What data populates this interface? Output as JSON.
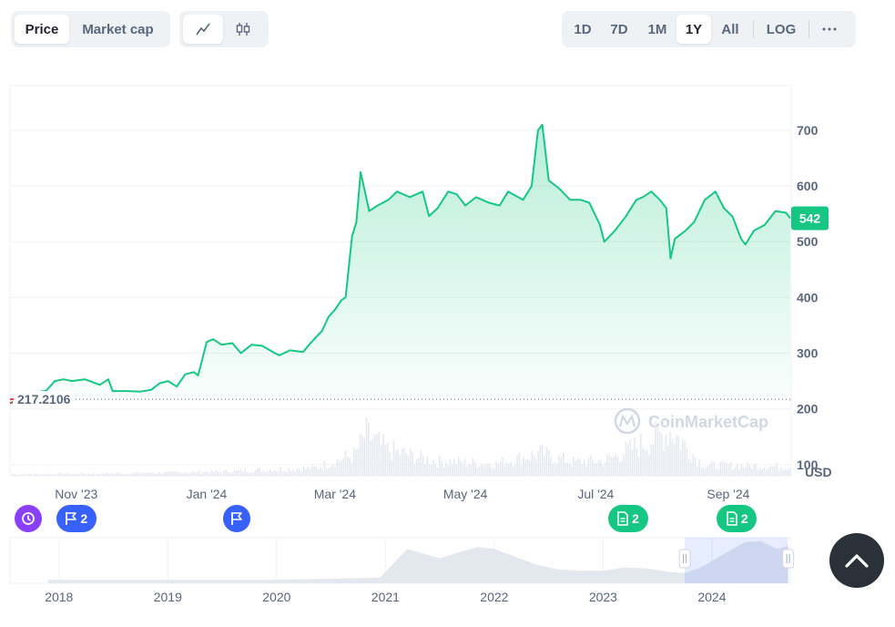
{
  "toolbar": {
    "metric_tabs": [
      {
        "label": "Price",
        "active": true
      },
      {
        "label": "Market cap",
        "active": false
      }
    ],
    "chart_style": [
      {
        "icon": "line-chart-icon",
        "active": true
      },
      {
        "icon": "candlestick-icon",
        "active": false
      }
    ],
    "ranges": [
      {
        "label": "1D",
        "active": false
      },
      {
        "label": "7D",
        "active": false
      },
      {
        "label": "1M",
        "active": false
      },
      {
        "label": "1Y",
        "active": true
      },
      {
        "label": "All",
        "active": false
      }
    ],
    "log_label": "LOG",
    "more_icon": "more-horizontal-icon"
  },
  "watermark": "CoinMarketCap",
  "events": [
    {
      "type": "history",
      "count": "",
      "color": "#8a3ffc",
      "icon": "history-icon",
      "date": "2023-10-04"
    },
    {
      "type": "flag",
      "count": "2",
      "color": "#3861fb",
      "icon": "flag-icon",
      "date": "2023-11-01"
    },
    {
      "type": "flag",
      "count": "",
      "color": "#3861fb",
      "icon": "flag-icon",
      "date": "2024-01-15"
    },
    {
      "type": "document",
      "count": "2",
      "color": "#16c784",
      "icon": "document-icon",
      "date": "2024-07-16"
    },
    {
      "type": "document",
      "count": "2",
      "color": "#16c784",
      "icon": "document-icon",
      "date": "2024-09-05"
    }
  ],
  "chart_data": {
    "type": "area",
    "title": "",
    "xlabel": "",
    "ylabel": "USD",
    "currency_label": "USD",
    "line_color": "#16c784",
    "start_color": "#ea3943",
    "ylim": [
      80,
      780
    ],
    "yticks": [
      100,
      200,
      300,
      400,
      500,
      600,
      700
    ],
    "x_range": [
      "2023-10-01",
      "2024-09-30"
    ],
    "x_ticks": [
      {
        "date": "2023-11-01",
        "label": "Nov '23"
      },
      {
        "date": "2024-01-01",
        "label": "Jan '24"
      },
      {
        "date": "2024-03-01",
        "label": "Mar '24"
      },
      {
        "date": "2024-05-01",
        "label": "May '24"
      },
      {
        "date": "2024-07-01",
        "label": "Jul '24"
      },
      {
        "date": "2024-09-01",
        "label": "Sep '24"
      }
    ],
    "open_price": 217.2106,
    "open_price_label": "217.2106",
    "current_price": 542,
    "current_price_label": "542",
    "series": [
      {
        "values": [
          [
            "2023-10-01",
            210
          ],
          [
            "2023-10-04",
            215
          ],
          [
            "2023-10-06",
            226
          ],
          [
            "2023-10-12",
            228
          ],
          [
            "2023-10-18",
            233
          ],
          [
            "2023-10-22",
            250
          ],
          [
            "2023-10-26",
            253
          ],
          [
            "2023-10-30",
            250
          ],
          [
            "2023-11-05",
            253
          ],
          [
            "2023-11-12",
            243
          ],
          [
            "2023-11-16",
            253
          ],
          [
            "2023-11-18",
            232
          ],
          [
            "2023-11-25",
            232
          ],
          [
            "2023-12-01",
            231
          ],
          [
            "2023-12-06",
            234
          ],
          [
            "2023-12-10",
            246
          ],
          [
            "2023-12-14",
            250
          ],
          [
            "2023-12-18",
            240
          ],
          [
            "2023-12-22",
            262
          ],
          [
            "2023-12-26",
            266
          ],
          [
            "2023-12-28",
            260
          ],
          [
            "2024-01-01",
            320
          ],
          [
            "2024-01-04",
            325
          ],
          [
            "2024-01-08",
            315
          ],
          [
            "2024-01-13",
            318
          ],
          [
            "2024-01-17",
            300
          ],
          [
            "2024-01-22",
            315
          ],
          [
            "2024-01-27",
            313
          ],
          [
            "2024-02-01",
            302
          ],
          [
            "2024-02-04",
            296
          ],
          [
            "2024-02-09",
            305
          ],
          [
            "2024-02-15",
            302
          ],
          [
            "2024-02-19",
            320
          ],
          [
            "2024-02-24",
            340
          ],
          [
            "2024-02-27",
            365
          ],
          [
            "2024-03-01",
            378
          ],
          [
            "2024-03-04",
            395
          ],
          [
            "2024-03-06",
            400
          ],
          [
            "2024-03-09",
            510
          ],
          [
            "2024-03-11",
            535
          ],
          [
            "2024-03-13",
            625
          ],
          [
            "2024-03-15",
            590
          ],
          [
            "2024-03-17",
            555
          ],
          [
            "2024-03-21",
            565
          ],
          [
            "2024-03-26",
            575
          ],
          [
            "2024-03-30",
            590
          ],
          [
            "2024-04-05",
            580
          ],
          [
            "2024-04-11",
            590
          ],
          [
            "2024-04-14",
            546
          ],
          [
            "2024-04-18",
            560
          ],
          [
            "2024-04-23",
            590
          ],
          [
            "2024-04-27",
            585
          ],
          [
            "2024-05-01",
            565
          ],
          [
            "2024-05-06",
            580
          ],
          [
            "2024-05-12",
            570
          ],
          [
            "2024-05-17",
            565
          ],
          [
            "2024-05-21",
            590
          ],
          [
            "2024-05-28",
            575
          ],
          [
            "2024-06-01",
            600
          ],
          [
            "2024-06-04",
            700
          ],
          [
            "2024-06-06",
            710
          ],
          [
            "2024-06-09",
            610
          ],
          [
            "2024-06-14",
            595
          ],
          [
            "2024-06-19",
            575
          ],
          [
            "2024-06-24",
            575
          ],
          [
            "2024-06-28",
            570
          ],
          [
            "2024-07-03",
            530
          ],
          [
            "2024-07-05",
            500
          ],
          [
            "2024-07-10",
            520
          ],
          [
            "2024-07-15",
            545
          ],
          [
            "2024-07-20",
            575
          ],
          [
            "2024-07-23",
            580
          ],
          [
            "2024-07-27",
            590
          ],
          [
            "2024-07-31",
            575
          ],
          [
            "2024-08-03",
            560
          ],
          [
            "2024-08-05",
            470
          ],
          [
            "2024-08-07",
            505
          ],
          [
            "2024-08-12",
            520
          ],
          [
            "2024-08-16",
            535
          ],
          [
            "2024-08-21",
            575
          ],
          [
            "2024-08-26",
            590
          ],
          [
            "2024-08-30",
            560
          ],
          [
            "2024-09-03",
            545
          ],
          [
            "2024-09-07",
            505
          ],
          [
            "2024-09-09",
            495
          ],
          [
            "2024-09-13",
            520
          ],
          [
            "2024-09-18",
            530
          ],
          [
            "2024-09-23",
            555
          ],
          [
            "2024-09-28",
            552
          ],
          [
            "2024-09-30",
            542
          ]
        ]
      }
    ],
    "volume_shape": [
      [
        "2023-10-01",
        2
      ],
      [
        "2023-11-15",
        3
      ],
      [
        "2024-01-01",
        5
      ],
      [
        "2024-02-20",
        10
      ],
      [
        "2024-03-10",
        28
      ],
      [
        "2024-03-15",
        55
      ],
      [
        "2024-03-25",
        35
      ],
      [
        "2024-04-15",
        20
      ],
      [
        "2024-05-15",
        16
      ],
      [
        "2024-06-05",
        30
      ],
      [
        "2024-06-20",
        18
      ],
      [
        "2024-07-05",
        20
      ],
      [
        "2024-08-05",
        60
      ],
      [
        "2024-08-20",
        14
      ],
      [
        "2024-09-30",
        12
      ]
    ]
  },
  "navigator": {
    "year_labels": [
      "2018",
      "2019",
      "2020",
      "2021",
      "2022",
      "2023",
      "2024"
    ],
    "shape": [
      [
        2017.9,
        3
      ],
      [
        2019.0,
        3
      ],
      [
        2020.0,
        3
      ],
      [
        2020.95,
        5
      ],
      [
        2021.1,
        20
      ],
      [
        2021.2,
        30
      ],
      [
        2021.35,
        26
      ],
      [
        2021.5,
        22
      ],
      [
        2021.7,
        28
      ],
      [
        2021.85,
        32
      ],
      [
        2022.0,
        30
      ],
      [
        2022.2,
        23
      ],
      [
        2022.4,
        16
      ],
      [
        2022.6,
        12
      ],
      [
        2022.8,
        11
      ],
      [
        2023.0,
        11
      ],
      [
        2023.2,
        14
      ],
      [
        2023.4,
        13
      ],
      [
        2023.6,
        10
      ],
      [
        2023.75,
        9
      ],
      [
        2023.9,
        14
      ],
      [
        2024.1,
        25
      ],
      [
        2024.3,
        36
      ],
      [
        2024.45,
        37
      ],
      [
        2024.6,
        30
      ],
      [
        2024.7,
        33
      ]
    ],
    "window": [
      2023.75,
      2024.7
    ]
  }
}
